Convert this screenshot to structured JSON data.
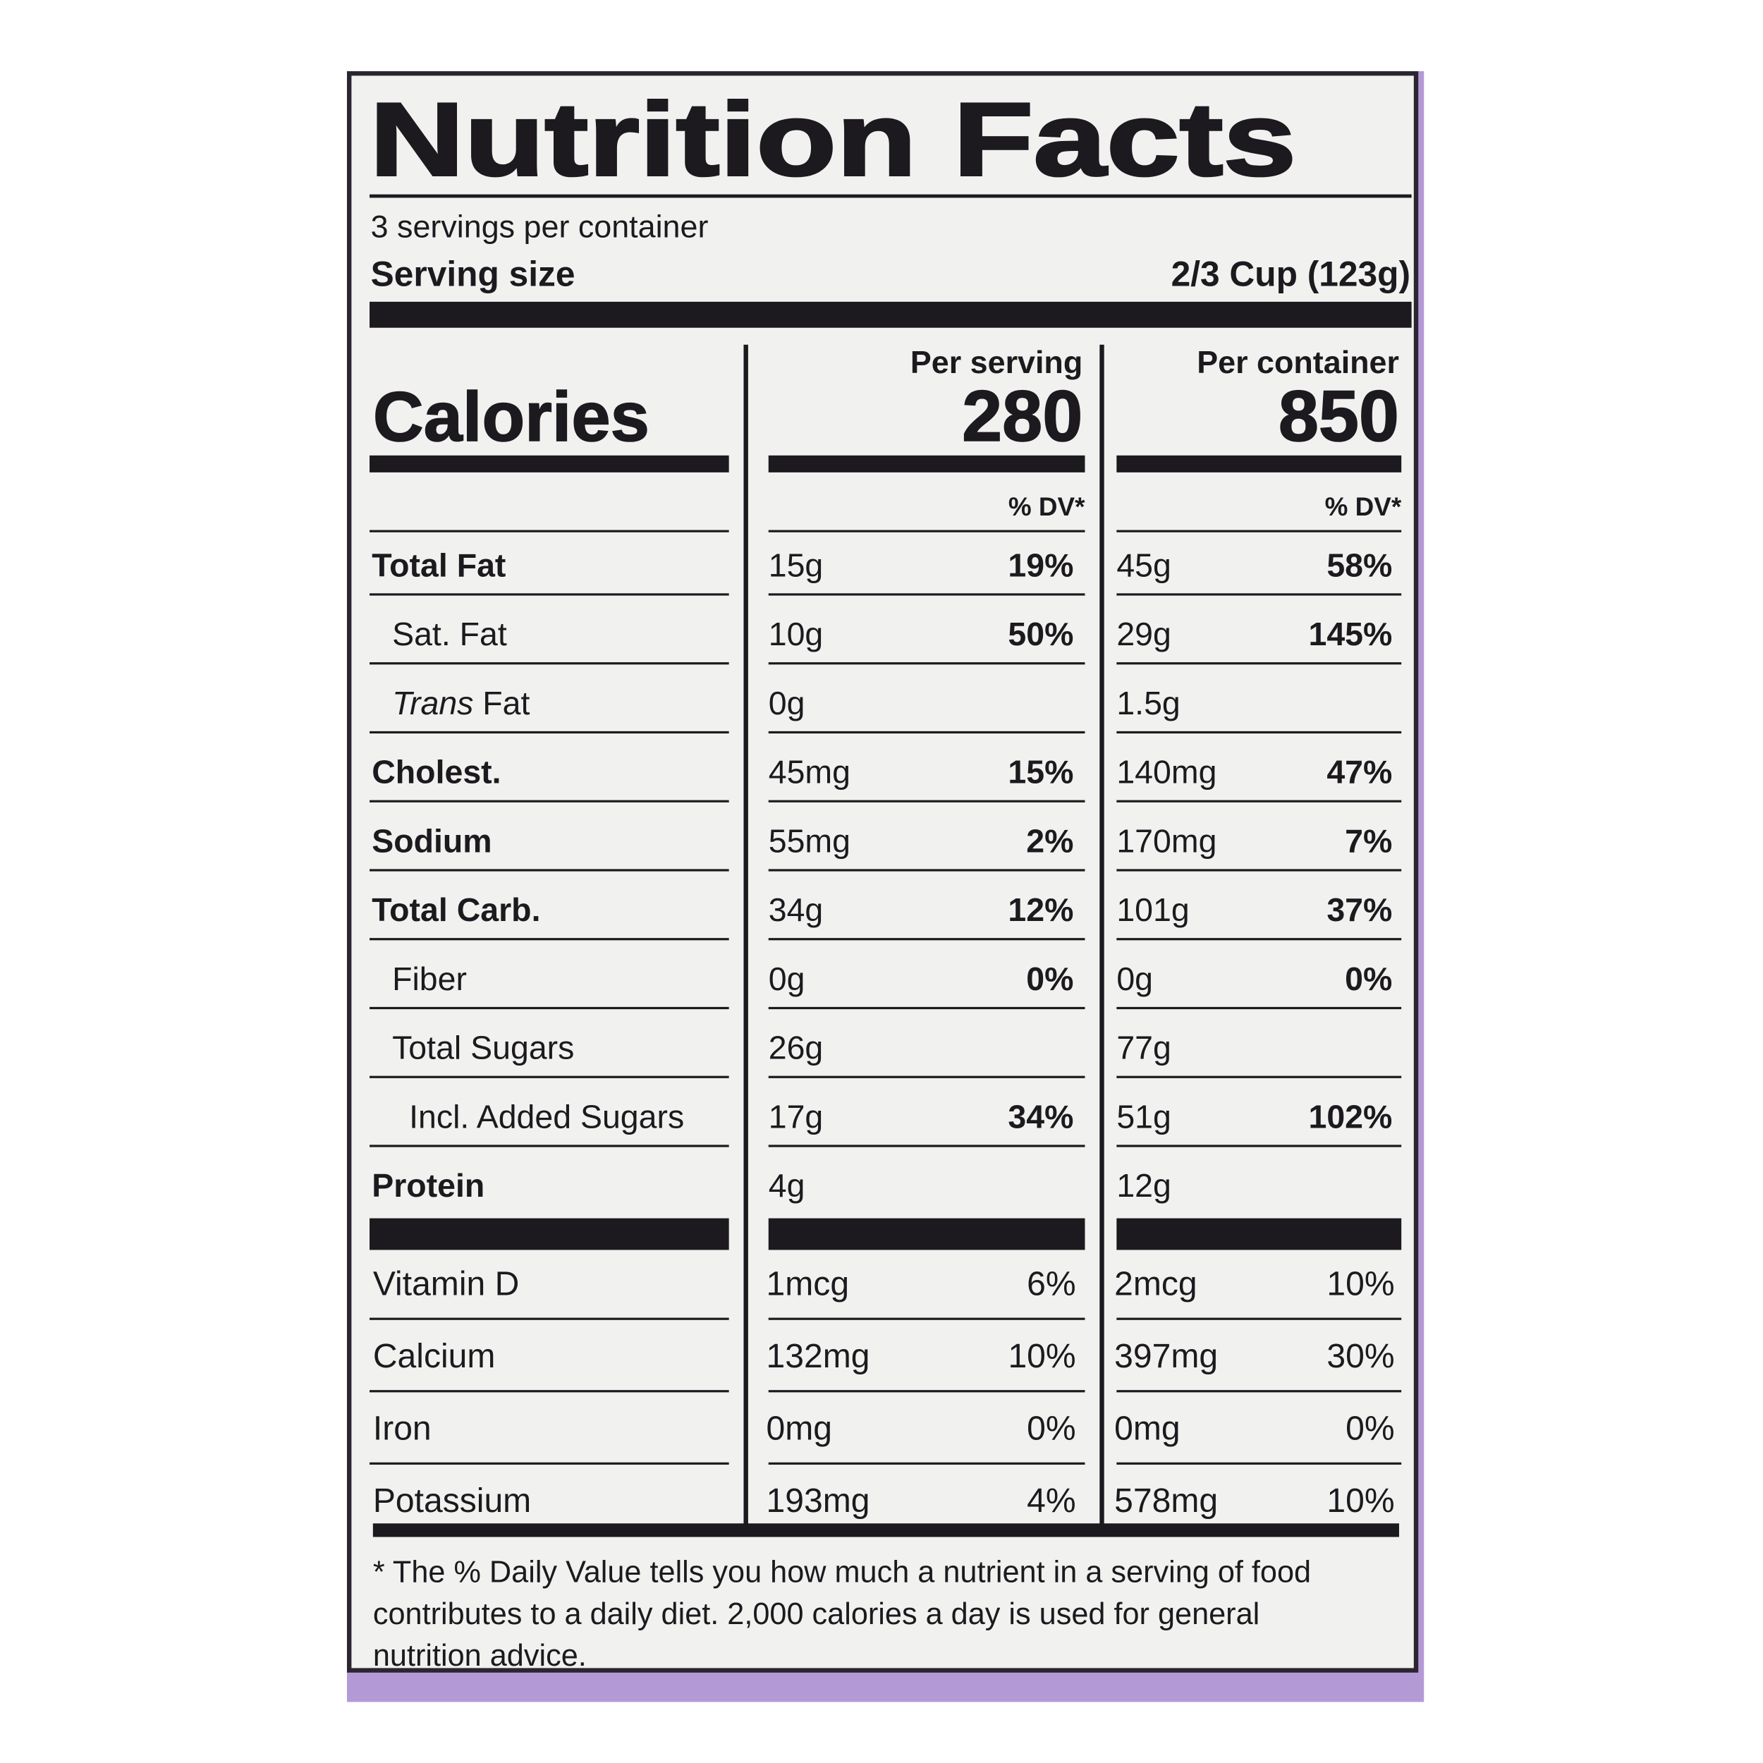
{
  "header": {
    "title": "Nutrition Facts",
    "servings": "3 servings per container",
    "serving_size_label": "Serving size",
    "serving_size_value": "2/3 Cup (123g)"
  },
  "calories_label": "Calories",
  "columns": [
    {
      "heading": "Per serving",
      "calories": "280",
      "dv_heading": "% DV*"
    },
    {
      "heading": "Per container",
      "calories": "850",
      "dv_heading": "% DV*"
    }
  ],
  "nutrients": [
    {
      "name": "Total Fat",
      "bold": true,
      "indent": 0,
      "amounts": [
        "15g",
        "45g"
      ],
      "dv": [
        "19%",
        "58%"
      ]
    },
    {
      "name": "Sat. Fat",
      "bold": false,
      "indent": 1,
      "amounts": [
        "10g",
        "29g"
      ],
      "dv": [
        "50%",
        "145%"
      ]
    },
    {
      "prefix": "Trans",
      "name": "Fat",
      "bold": false,
      "indent": 1,
      "amounts": [
        "0g",
        "1.5g"
      ],
      "dv": [
        null,
        null
      ]
    },
    {
      "name": "Cholest.",
      "bold": true,
      "indent": 0,
      "amounts": [
        "45mg",
        "140mg"
      ],
      "dv": [
        "15%",
        "47%"
      ]
    },
    {
      "name": "Sodium",
      "bold": true,
      "indent": 0,
      "amounts": [
        "55mg",
        "170mg"
      ],
      "dv": [
        "2%",
        "7%"
      ]
    },
    {
      "name": "Total Carb.",
      "bold": true,
      "indent": 0,
      "amounts": [
        "34g",
        "101g"
      ],
      "dv": [
        "12%",
        "37%"
      ]
    },
    {
      "name": "Fiber",
      "bold": false,
      "indent": 1,
      "amounts": [
        "0g",
        "0g"
      ],
      "dv": [
        "0%",
        "0%"
      ]
    },
    {
      "name": "Total Sugars",
      "bold": false,
      "indent": 1,
      "amounts": [
        "26g",
        "77g"
      ],
      "dv": [
        null,
        null
      ]
    },
    {
      "name": "Incl. Added Sugars",
      "bold": false,
      "indent": 2,
      "amounts": [
        "17g",
        "51g"
      ],
      "dv": [
        "34%",
        "102%"
      ]
    },
    {
      "name": "Protein",
      "bold": true,
      "indent": 0,
      "amounts": [
        "4g",
        "12g"
      ],
      "dv": [
        null,
        null
      ]
    }
  ],
  "vitamins": [
    {
      "name": "Vitamin D",
      "amounts": [
        "1mcg",
        "2mcg"
      ],
      "dv": [
        "6%",
        "10%"
      ]
    },
    {
      "name": "Calcium",
      "amounts": [
        "132mg",
        "397mg"
      ],
      "dv": [
        "10%",
        "30%"
      ]
    },
    {
      "name": "Iron",
      "amounts": [
        "0mg",
        "0mg"
      ],
      "dv": [
        "0%",
        "0%"
      ]
    },
    {
      "name": "Potassium",
      "amounts": [
        "193mg",
        "578mg"
      ],
      "dv": [
        "4%",
        "10%"
      ]
    }
  ],
  "footnote": [
    "* The % Daily Value tells you how much a nutrient in a serving of food",
    "contributes to a daily diet. 2,000 calories a day is used for general",
    "nutrition advice."
  ]
}
